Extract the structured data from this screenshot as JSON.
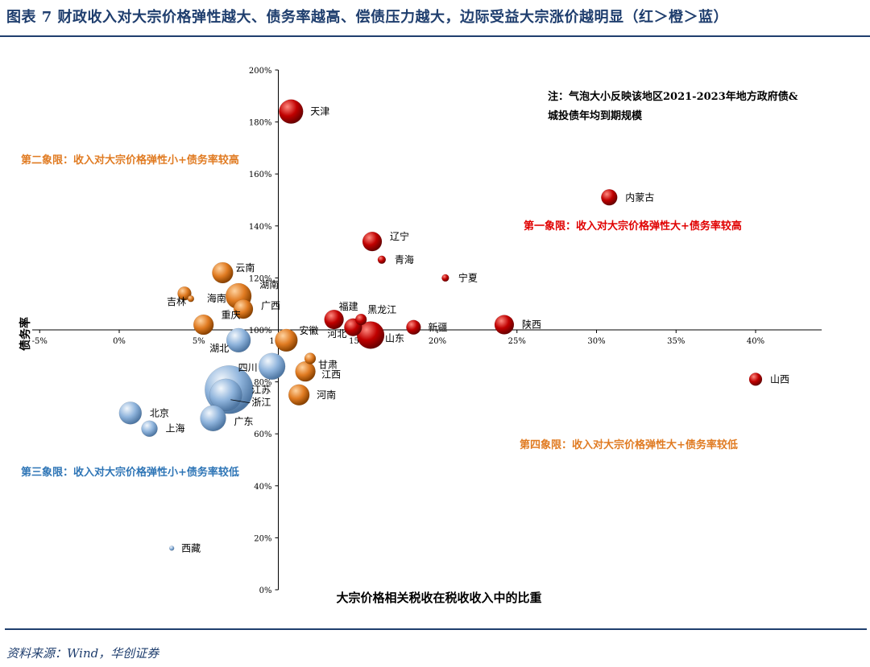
{
  "header": {
    "title": "图表 7   财政收入对大宗价格弹性越大、债务率越高、偿债压力越大，边际受益大宗涨价越明显（红＞橙＞蓝）"
  },
  "footer": {
    "source": "资料来源：Wind，华创证券"
  },
  "colors": {
    "red": "#c00000",
    "orange": "#e07b22",
    "blue": "#8fb4dc",
    "title": "#1f3e6e"
  },
  "chart_data": {
    "type": "scatter",
    "subtype": "bubble",
    "xlabel": "大宗价格相关税收在税收收入中的比重",
    "ylabel": "债务率",
    "xlim": [
      -5,
      44
    ],
    "ylim": [
      0,
      200
    ],
    "x_ticks": [
      "-5%",
      "0%",
      "5%",
      "10%",
      "15%",
      "20%",
      "25%",
      "30%",
      "35%",
      "40%"
    ],
    "y_ticks": [
      "0%",
      "20%",
      "40%",
      "60%",
      "80%",
      "100%",
      "120%",
      "140%",
      "160%",
      "180%",
      "200%"
    ],
    "note": [
      "注：气泡大小反映该地区2021-2023年地方政府债&",
      "城投债年均到期规模"
    ],
    "quadrants": {
      "q1": "第一象限：收入对大宗价格弹性大+债务率较高",
      "q2": "第二象限：收入对大宗价格弹性小+债务率较高",
      "q3": "第三象限：收入对大宗价格弹性小+债务率较低",
      "q4": "第四象限：收入对大宗价格弹性大+债务率较低"
    },
    "points": [
      {
        "name": "天津",
        "x": 10.8,
        "y": 184,
        "size": 15,
        "color": "red"
      },
      {
        "name": "内蒙古",
        "x": 30.8,
        "y": 151,
        "size": 10,
        "color": "red"
      },
      {
        "name": "辽宁",
        "x": 15.9,
        "y": 134,
        "size": 12,
        "color": "red"
      },
      {
        "name": "青海",
        "x": 16.5,
        "y": 127,
        "size": 5,
        "color": "red"
      },
      {
        "name": "宁夏",
        "x": 20.5,
        "y": 120,
        "size": 4.5,
        "color": "red"
      },
      {
        "name": "福建",
        "x": 13.5,
        "y": 104,
        "size": 12,
        "color": "red"
      },
      {
        "name": "黑龙江",
        "x": 15.2,
        "y": 104,
        "size": 7,
        "color": "red"
      },
      {
        "name": "河北",
        "x": 14.7,
        "y": 101,
        "size": 11,
        "color": "red"
      },
      {
        "name": "山东",
        "x": 15.8,
        "y": 98,
        "size": 17,
        "color": "red"
      },
      {
        "name": "新疆",
        "x": 18.5,
        "y": 101,
        "size": 9,
        "color": "red"
      },
      {
        "name": "陕西",
        "x": 24.2,
        "y": 102,
        "size": 12,
        "color": "red"
      },
      {
        "name": "山西",
        "x": 40.0,
        "y": 81,
        "size": 8,
        "color": "red"
      },
      {
        "name": "云南",
        "x": 6.5,
        "y": 122,
        "size": 13,
        "color": "orange"
      },
      {
        "name": "吉林",
        "x": 4.1,
        "y": 114,
        "size": 8.5,
        "color": "orange"
      },
      {
        "name": "湖南",
        "x": 7.5,
        "y": 113,
        "size": 16,
        "color": "orange"
      },
      {
        "name": "广西",
        "x": 7.8,
        "y": 108,
        "size": 12,
        "color": "orange"
      },
      {
        "name": "海南",
        "x": 4.5,
        "y": 112,
        "size": 4,
        "color": "orange"
      },
      {
        "name": "重庆",
        "x": 5.3,
        "y": 102,
        "size": 12.5,
        "color": "orange"
      },
      {
        "name": "安徽",
        "x": 10.5,
        "y": 96,
        "size": 14,
        "color": "orange"
      },
      {
        "name": "甘肃",
        "x": 12.0,
        "y": 89,
        "size": 7,
        "color": "orange"
      },
      {
        "name": "江西",
        "x": 11.7,
        "y": 84,
        "size": 12.5,
        "color": "orange"
      },
      {
        "name": "河南",
        "x": 11.3,
        "y": 75,
        "size": 13,
        "color": "orange"
      },
      {
        "name": "湖北",
        "x": 7.5,
        "y": 96,
        "size": 15,
        "color": "blue"
      },
      {
        "name": "四川",
        "x": 9.6,
        "y": 86,
        "size": 16.5,
        "color": "blue"
      },
      {
        "name": "江苏",
        "x": 6.9,
        "y": 77,
        "size": 30,
        "color": "blue"
      },
      {
        "name": "浙江",
        "x": 6.7,
        "y": 75,
        "size": 20,
        "color": "blue"
      },
      {
        "name": "广东",
        "x": 5.9,
        "y": 66,
        "size": 16,
        "color": "blue"
      },
      {
        "name": "北京",
        "x": 0.7,
        "y": 68,
        "size": 14,
        "color": "blue"
      },
      {
        "name": "上海",
        "x": 1.9,
        "y": 62,
        "size": 10,
        "color": "blue"
      },
      {
        "name": "西藏",
        "x": 3.3,
        "y": 16,
        "size": 3,
        "color": "blue"
      }
    ]
  }
}
